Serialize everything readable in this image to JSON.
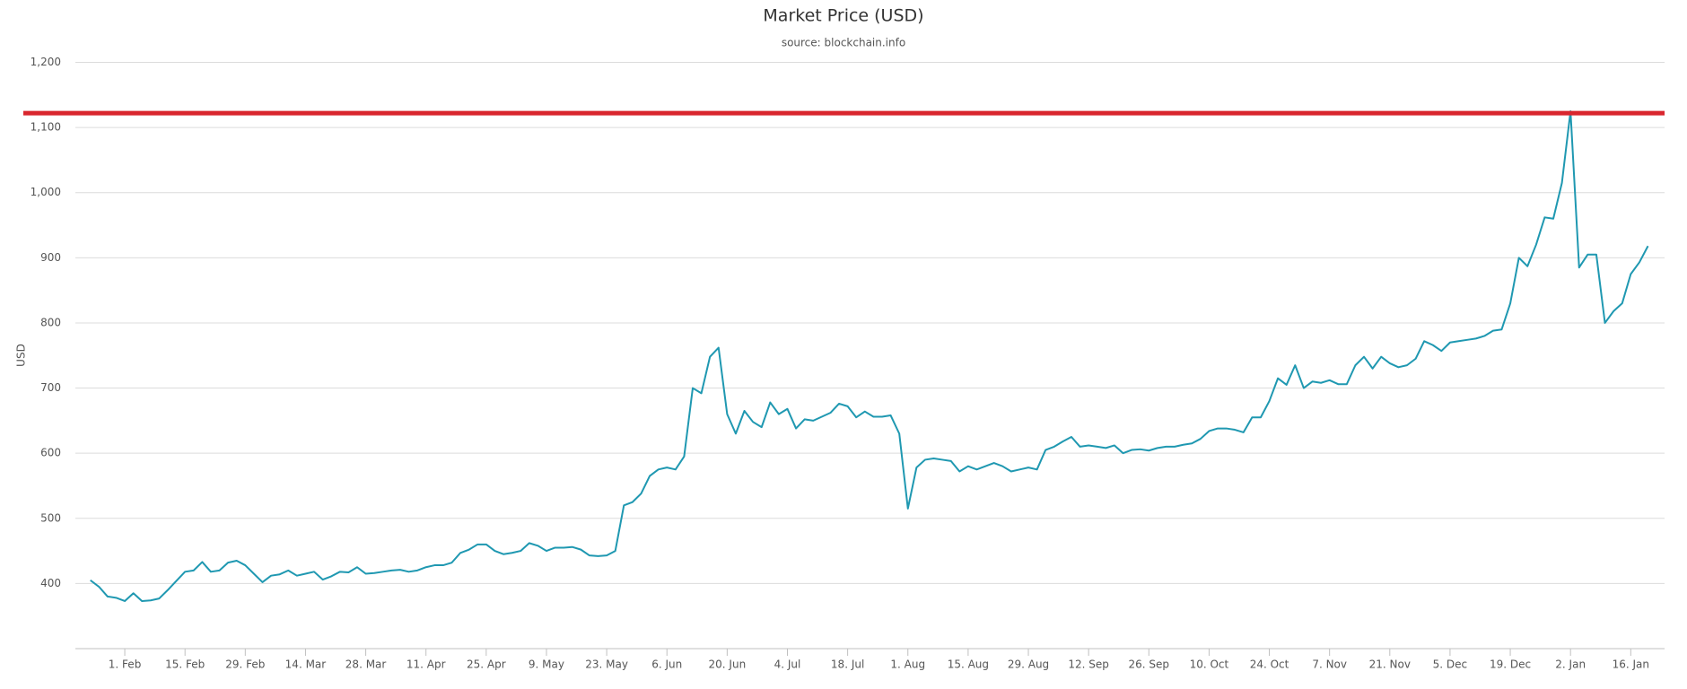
{
  "chart_data": {
    "type": "line",
    "title": "Market Price (USD)",
    "subtitle": "source: blockchain.info",
    "y_label": "USD",
    "color": "#1f98b1",
    "grid": true,
    "ylim": [
      300,
      1200
    ],
    "yticks": [
      400,
      500,
      600,
      700,
      800,
      900,
      {
        "value": 1000,
        "label": "1,000"
      },
      {
        "value": 1100,
        "label": "1,100"
      },
      {
        "value": 1200,
        "label": "1,200"
      }
    ],
    "reference_line": {
      "value": 1122,
      "color": "#d9262e"
    },
    "categories": [
      null,
      null,
      null,
      null,
      "1. Feb",
      null,
      null,
      null,
      null,
      null,
      null,
      "15. Feb",
      null,
      null,
      null,
      null,
      null,
      null,
      "29. Feb",
      null,
      null,
      null,
      null,
      null,
      null,
      "14. Mar",
      null,
      null,
      null,
      null,
      null,
      null,
      "28. Mar",
      null,
      null,
      null,
      null,
      null,
      null,
      "11. Apr",
      null,
      null,
      null,
      null,
      null,
      null,
      "25. Apr",
      null,
      null,
      null,
      null,
      null,
      null,
      "9. May",
      null,
      null,
      null,
      null,
      null,
      null,
      "23. May",
      null,
      null,
      null,
      null,
      null,
      null,
      "6. Jun",
      null,
      null,
      null,
      null,
      null,
      null,
      "20. Jun",
      null,
      null,
      null,
      null,
      null,
      null,
      "4. Jul",
      null,
      null,
      null,
      null,
      null,
      null,
      "18. Jul",
      null,
      null,
      null,
      null,
      null,
      null,
      "1. Aug",
      null,
      null,
      null,
      null,
      null,
      null,
      "15. Aug",
      null,
      null,
      null,
      null,
      null,
      null,
      "29. Aug",
      null,
      null,
      null,
      null,
      null,
      null,
      "12. Sep",
      null,
      null,
      null,
      null,
      null,
      null,
      "26. Sep",
      null,
      null,
      null,
      null,
      null,
      null,
      "10. Oct",
      null,
      null,
      null,
      null,
      null,
      null,
      "24. Oct",
      null,
      null,
      null,
      null,
      null,
      null,
      "7. Nov",
      null,
      null,
      null,
      null,
      null,
      null,
      "21. Nov",
      null,
      null,
      null,
      null,
      null,
      null,
      "5. Dec",
      null,
      null,
      null,
      null,
      null,
      null,
      "19. Dec",
      null,
      null,
      null,
      null,
      null,
      null,
      "2. Jan",
      null,
      null,
      null,
      null,
      null,
      null,
      "16. Jan",
      null,
      null
    ],
    "values": [
      405,
      395,
      380,
      378,
      373,
      385,
      373,
      374,
      377,
      390,
      404,
      418,
      420,
      433,
      418,
      420,
      432,
      435,
      428,
      415,
      402,
      412,
      414,
      420,
      412,
      415,
      418,
      406,
      411,
      418,
      417,
      425,
      415,
      416,
      418,
      420,
      421,
      418,
      420,
      425,
      428,
      428,
      432,
      447,
      452,
      460,
      460,
      450,
      445,
      447,
      450,
      462,
      458,
      450,
      455,
      455,
      456,
      452,
      443,
      442,
      443,
      450,
      520,
      525,
      538,
      565,
      575,
      578,
      575,
      595,
      700,
      692,
      748,
      762,
      660,
      630,
      665,
      648,
      640,
      678,
      660,
      668,
      638,
      652,
      650,
      656,
      662,
      676,
      672,
      655,
      664,
      656,
      656,
      658,
      630,
      515,
      578,
      590,
      592,
      590,
      588,
      572,
      580,
      575,
      580,
      585,
      580,
      572,
      575,
      578,
      575,
      605,
      610,
      618,
      625,
      610,
      612,
      610,
      608,
      612,
      600,
      605,
      606,
      604,
      608,
      610,
      610,
      613,
      615,
      622,
      634,
      638,
      638,
      636,
      632,
      655,
      655,
      680,
      715,
      705,
      735,
      700,
      710,
      708,
      712,
      706,
      706,
      735,
      748,
      730,
      748,
      738,
      732,
      735,
      745,
      772,
      766,
      757,
      770,
      772,
      774,
      776,
      780,
      788,
      790,
      830,
      900,
      887,
      920,
      962,
      960,
      1015,
      1125,
      885,
      905,
      905,
      800,
      818,
      830,
      875,
      893,
      918
    ]
  }
}
